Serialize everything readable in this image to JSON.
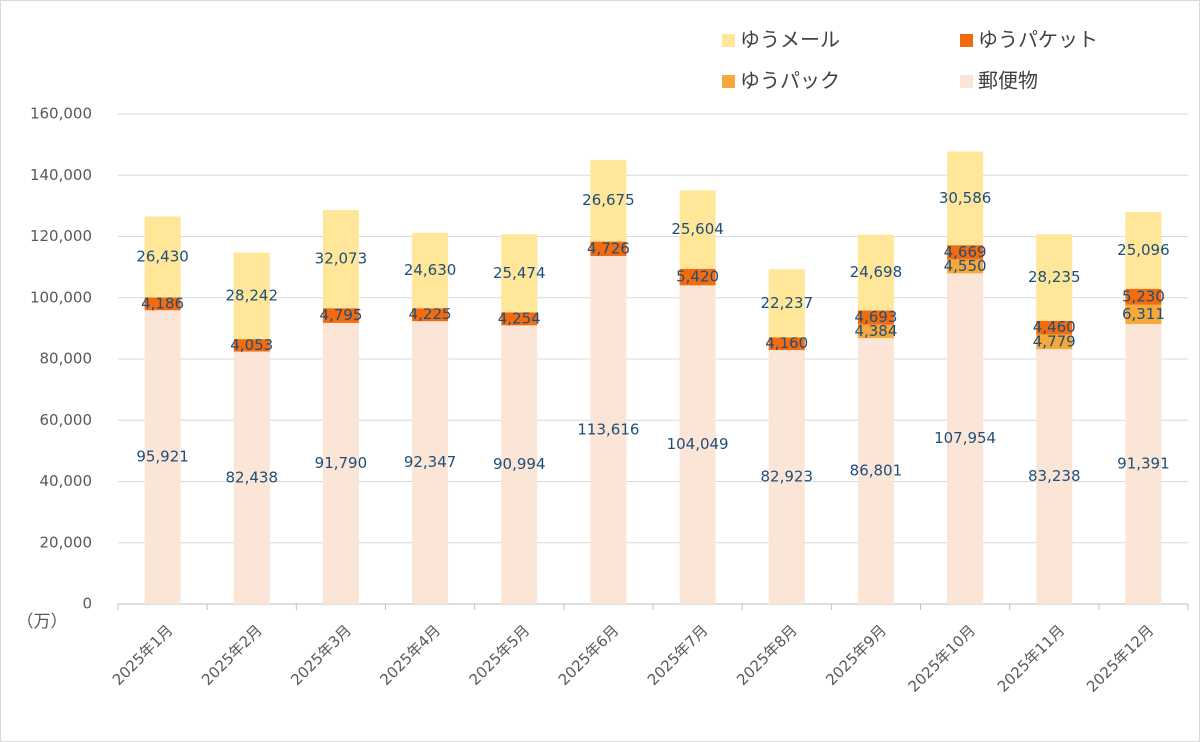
{
  "chart_data": {
    "type": "stacked_bar",
    "unit_label": "（万）",
    "categories": [
      "2025年1月",
      "2025年2月",
      "2025年3月",
      "2025年4月",
      "2025年5月",
      "2025年6月",
      "2025年7月",
      "2025年8月",
      "2025年9月",
      "2025年10月",
      "2025年11月",
      "2025年12月"
    ],
    "series": [
      {
        "name": "郵便物",
        "color": "#fbe5d6",
        "values": [
          95921,
          82438,
          91790,
          92347,
          90994,
          113616,
          104049,
          82923,
          86801,
          107954,
          83238,
          91391
        ],
        "value_labels": [
          "95,921",
          "82,438",
          "91,790",
          "92,347",
          "90,994",
          "113,616",
          "104,049",
          "82,923",
          "86,801",
          "107,954",
          "83,238",
          "91,391"
        ]
      },
      {
        "name": "ゆうパック",
        "color": "#f6a93b",
        "values": [
          null,
          null,
          null,
          null,
          null,
          null,
          null,
          null,
          4384,
          4550,
          4779,
          6311
        ],
        "value_labels": [
          null,
          null,
          null,
          null,
          null,
          null,
          null,
          null,
          "4,384",
          "4,550",
          "4,779",
          "6,311"
        ]
      },
      {
        "name": "ゆうパケット",
        "color": "#f26c0f",
        "values": [
          4186,
          4053,
          4795,
          4225,
          4254,
          4726,
          5420,
          4160,
          4693,
          4669,
          4460,
          5230
        ],
        "value_labels": [
          "4,186",
          "4,053",
          "4,795",
          "4,225",
          "4,254",
          "4,726",
          "5,420",
          "4,160",
          "4,693",
          "4,669",
          "4,460",
          "5,230"
        ]
      },
      {
        "name": "ゆうメール",
        "color": "#ffe699",
        "values": [
          26430,
          28242,
          32073,
          24630,
          25474,
          26675,
          25604,
          22237,
          24698,
          30586,
          28235,
          25096
        ],
        "value_labels": [
          "26,430",
          "28,242",
          "32,073",
          "24,630",
          "25,474",
          "26,675",
          "25,604",
          "22,237",
          "24,698",
          "30,586",
          "28,235",
          "25,096"
        ]
      }
    ],
    "ylim": [
      0,
      160000
    ],
    "yticks": [
      0,
      {
        "value": 20000,
        "label": "20,000"
      },
      {
        "value": 40000,
        "label": "40,000"
      },
      {
        "value": 60000,
        "label": "60,000"
      },
      {
        "value": 80000,
        "label": "80,000"
      },
      {
        "value": 100000,
        "label": "100,000"
      },
      {
        "value": 120000,
        "label": "120,000"
      },
      {
        "value": 140000,
        "label": "140,000"
      },
      {
        "value": 160000,
        "label": "160,000"
      }
    ],
    "grid": true
  }
}
